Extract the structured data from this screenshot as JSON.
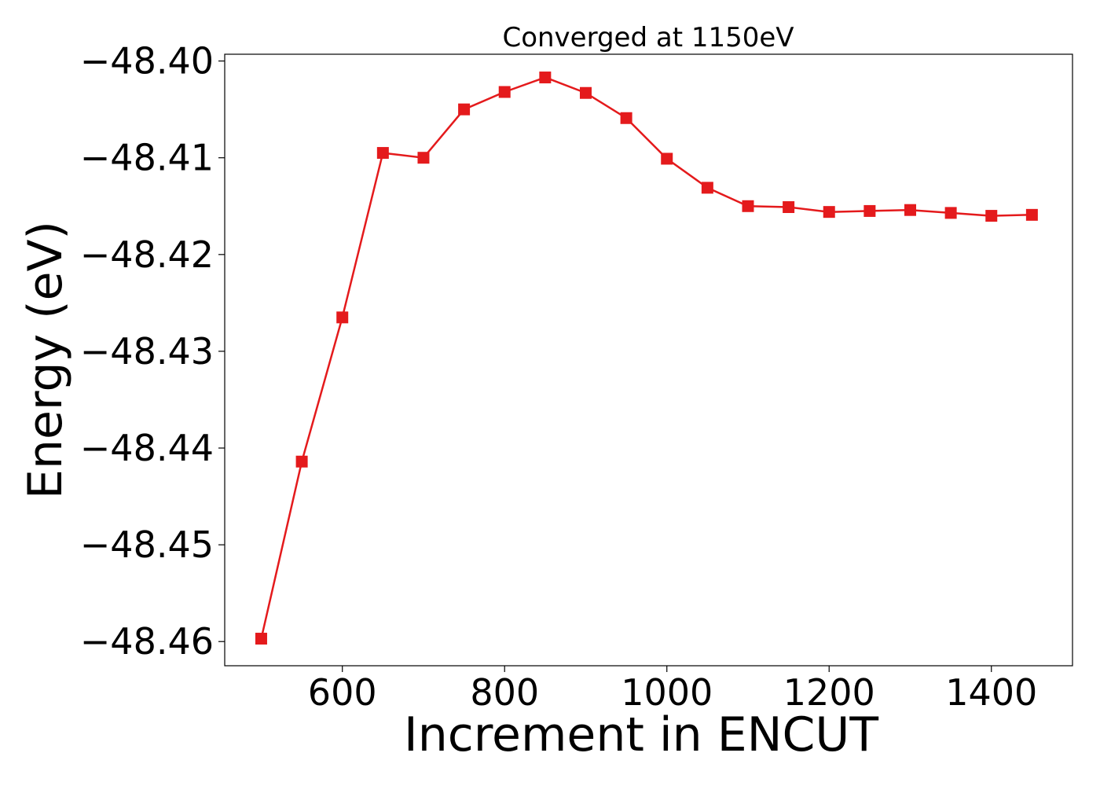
{
  "chart_data": {
    "type": "line",
    "title": "Converged at 1150eV",
    "xlabel": "Increment in ENCUT",
    "ylabel": "Energy (eV)",
    "xlim": [
      455,
      1500
    ],
    "ylim": [
      -48.4625,
      -48.3993
    ],
    "xticks": [
      600,
      800,
      1000,
      1200,
      1400
    ],
    "xtick_labels": [
      "600",
      "800",
      "1000",
      "1200",
      "1400"
    ],
    "yticks": [
      -48.4,
      -48.41,
      -48.42,
      -48.43,
      -48.44,
      -48.45,
      -48.46
    ],
    "ytick_labels": [
      "−48.40",
      "−48.41",
      "−48.42",
      "−48.43",
      "−48.44",
      "−48.45",
      "−48.46"
    ],
    "grid": false,
    "series": [
      {
        "color": "#e41a1c",
        "marker": "square",
        "x": [
          500,
          550,
          600,
          650,
          700,
          750,
          800,
          850,
          900,
          950,
          1000,
          1050,
          1100,
          1150,
          1200,
          1250,
          1300,
          1350,
          1400,
          1450
        ],
        "values": [
          -48.4597,
          -48.4414,
          -48.4265,
          -48.4095,
          -48.41,
          -48.405,
          -48.4032,
          -48.4017,
          -48.4033,
          -48.4059,
          -48.4101,
          -48.4131,
          -48.415,
          -48.4151,
          -48.4156,
          -48.4155,
          -48.4154,
          -48.4157,
          -48.416,
          -48.4159
        ]
      }
    ]
  }
}
